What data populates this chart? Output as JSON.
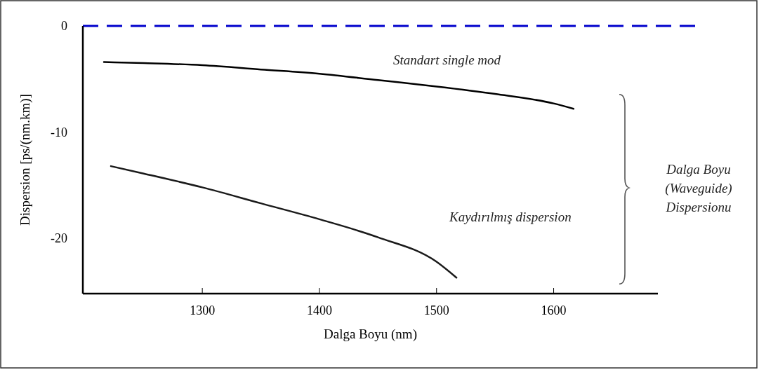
{
  "chart_data": {
    "type": "line",
    "xlabel": "Dalga Boyu (nm)",
    "ylabel": "Dispersion  [ps/(nm.km)]",
    "xlim": [
      1198,
      1689
    ],
    "xticks": [
      1300,
      1400,
      1500,
      1600
    ],
    "ylim": [
      -25.2,
      0
    ],
    "yticks": [
      0,
      -10,
      -20
    ],
    "series": [
      {
        "name": "Standart single mod",
        "color": "#000000",
        "x": [
          1216,
          1250,
          1300,
          1350,
          1400,
          1450,
          1500,
          1550,
          1600,
          1617
        ],
        "values": [
          -3.4,
          -3.5,
          -3.7,
          -4.1,
          -4.5,
          -5.1,
          -5.7,
          -6.4,
          -7.3,
          -7.8
        ]
      },
      {
        "name": "Kaydırılmış dispersion",
        "color": "#1a1a1a",
        "x": [
          1222,
          1250,
          1300,
          1350,
          1400,
          1450,
          1500,
          1517
        ],
        "values": [
          -13.2,
          -13.9,
          -15.2,
          -16.7,
          -18.2,
          -19.9,
          -22.2,
          -23.7
        ]
      }
    ],
    "ref_lines": [
      {
        "axis": "y",
        "value": 0,
        "color": "#0000cc",
        "line_style": "dashed"
      }
    ],
    "annotations": [
      "Dalga Boyu\n(Waveguide)\nDispersionu"
    ],
    "grid": false,
    "legend": false,
    "line_style": "solid",
    "marker": "none"
  }
}
